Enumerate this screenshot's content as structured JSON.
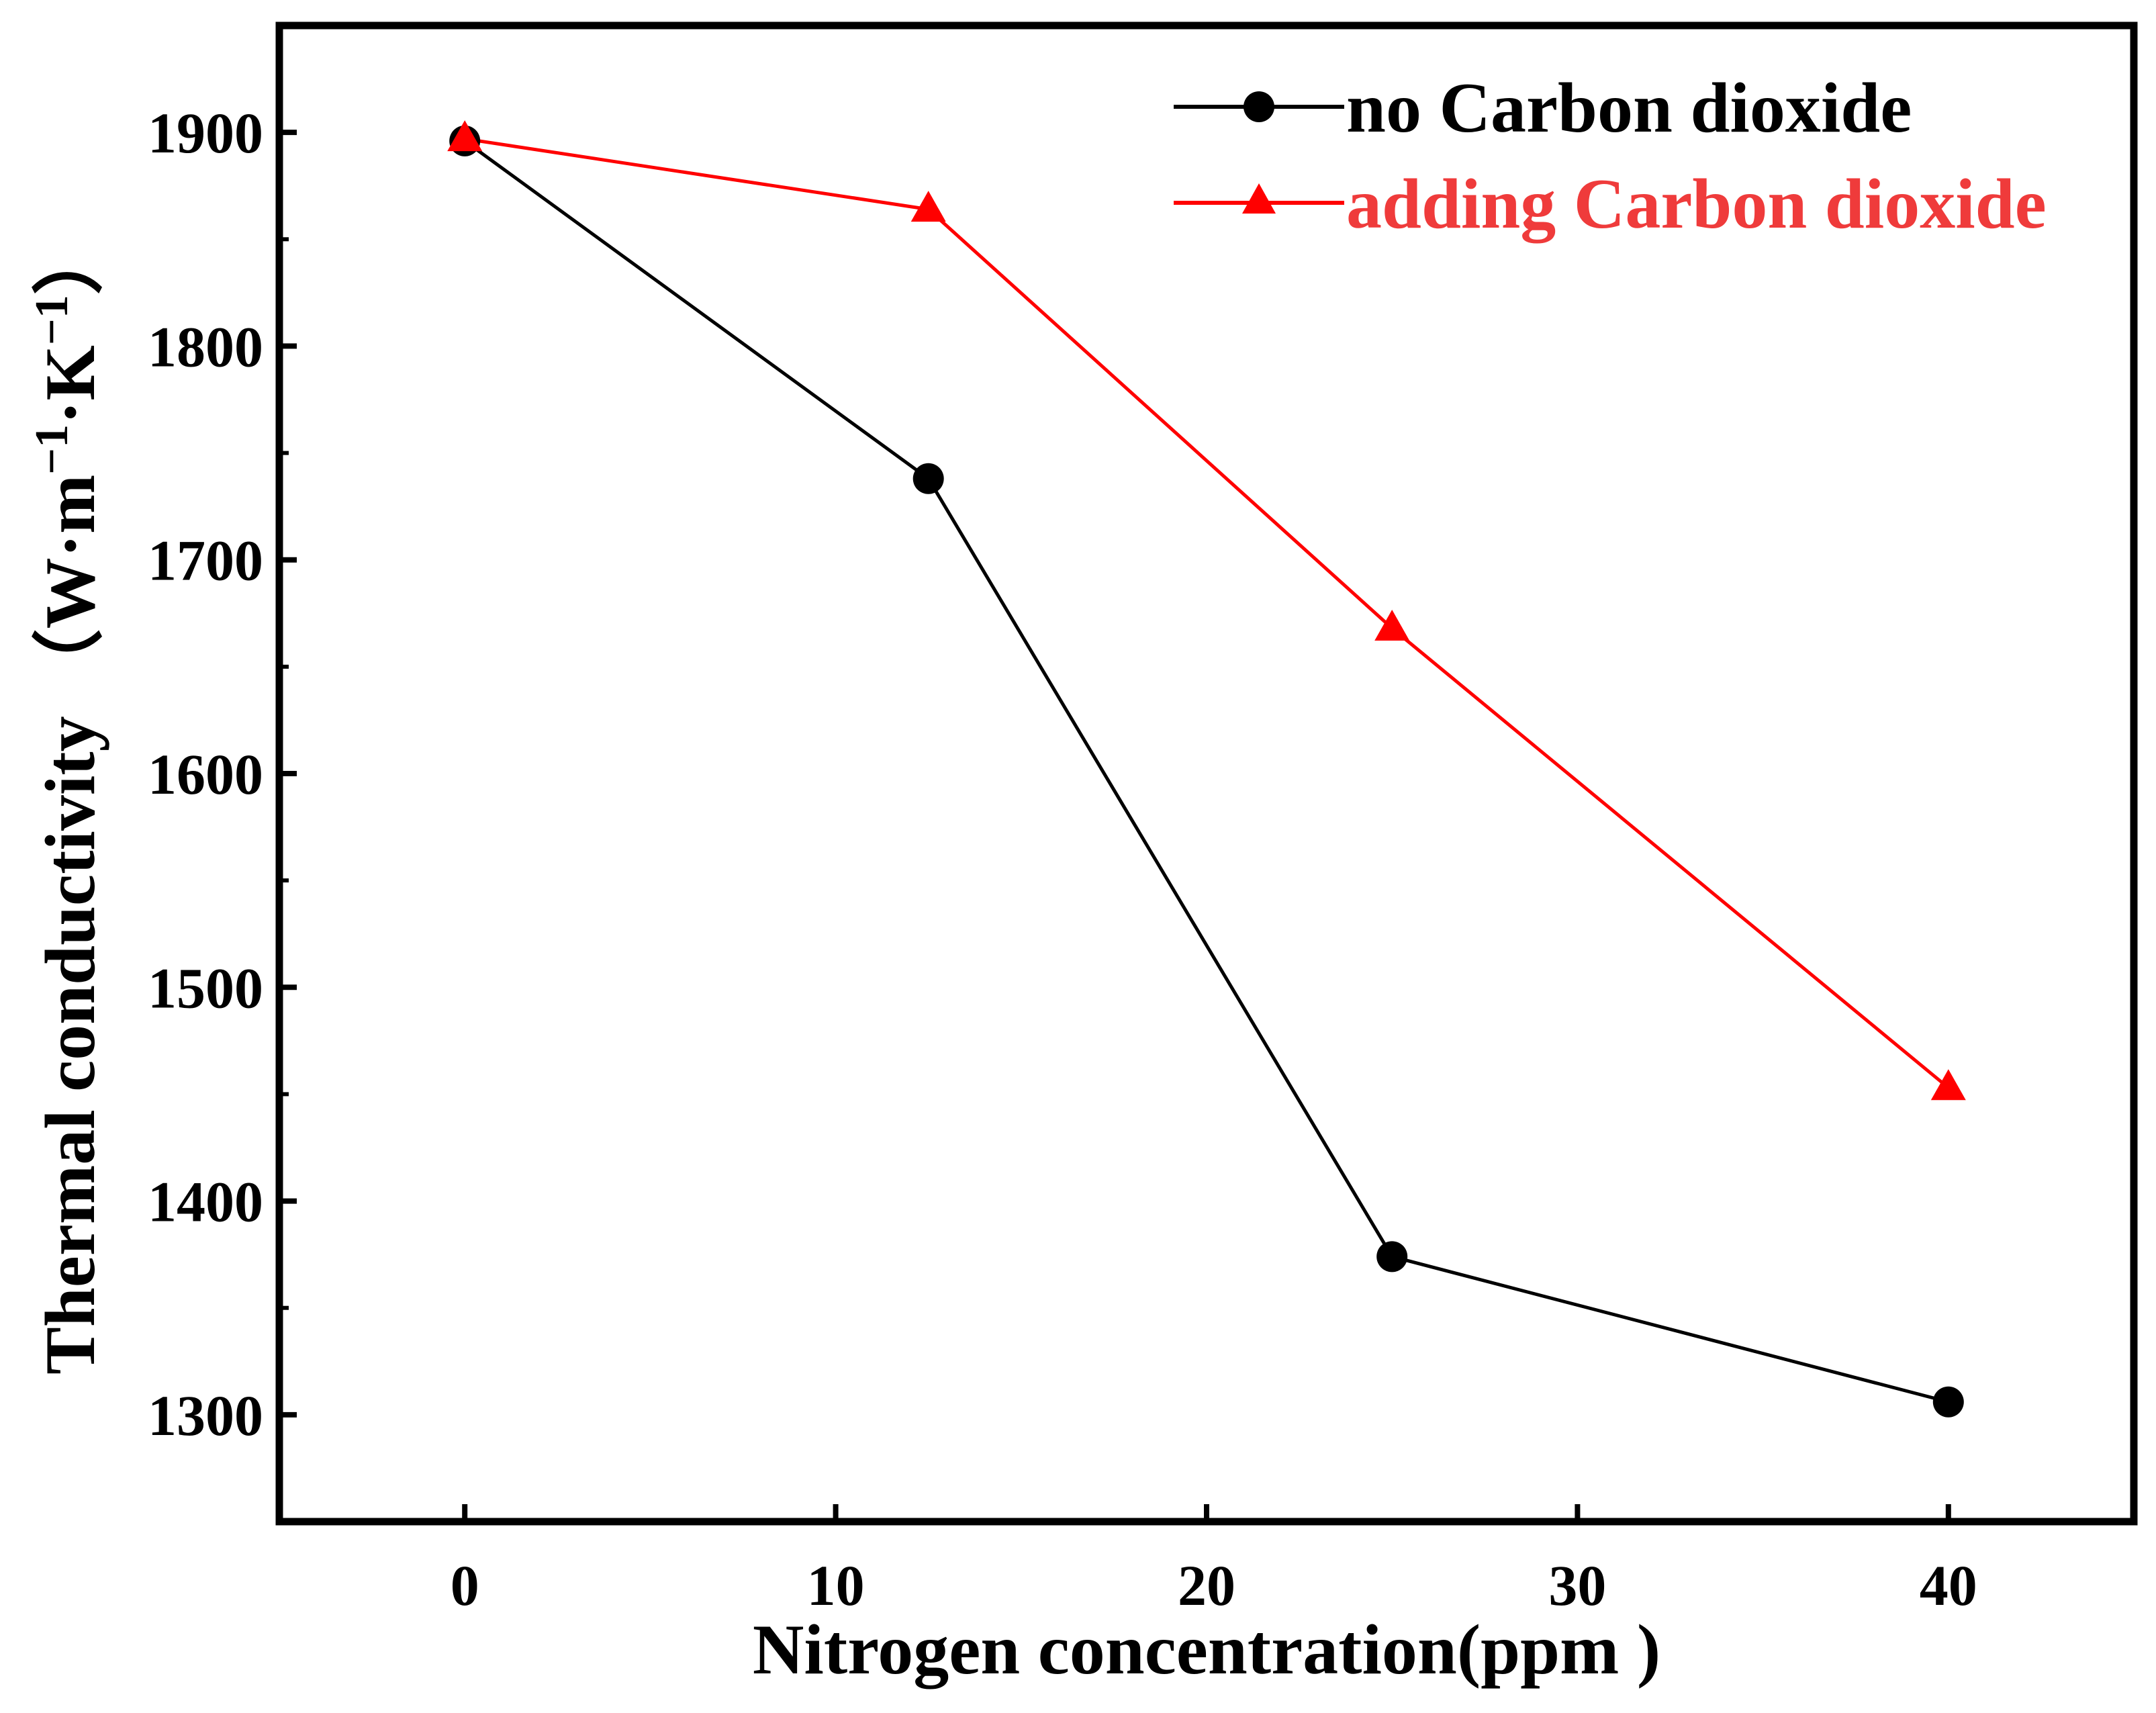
{
  "chart_data": {
    "type": "line",
    "title": "",
    "xlabel": "Nitrogen concentration(ppm )",
    "ylabel": {
      "text": "Thermal conductivity",
      "unit_open": "（",
      "unit_w": "W",
      "unit_dot1": "·",
      "unit_m": "m",
      "unit_sup1": "−1",
      "unit_dot2": "·",
      "unit_k": "K",
      "unit_sup2": "−1",
      "unit_close": "）"
    },
    "xlim": [
      -5,
      45
    ],
    "ylim": [
      1250,
      1950
    ],
    "x_major_ticks": [
      0,
      10,
      20,
      30,
      40
    ],
    "x_tick_labels": [
      "0",
      "10",
      "20",
      "30",
      "40"
    ],
    "y_major_ticks": [
      1300,
      1400,
      1500,
      1600,
      1700,
      1800,
      1900
    ],
    "y_tick_labels": [
      "1300",
      "1400",
      "1500",
      "1600",
      "1700",
      "1800",
      "1900"
    ],
    "y_minor_ticks": [
      1350,
      1450,
      1550,
      1650,
      1750,
      1850
    ],
    "grid": false,
    "legend_position": "top-right",
    "series": [
      {
        "name": "no Carbon dioxide",
        "color": "#000000",
        "marker": "circle",
        "x": [
          0,
          12.5,
          25,
          40
        ],
        "y": [
          1896,
          1738,
          1374,
          1306
        ]
      },
      {
        "name": "adding Carbon dioxide",
        "color": "#ff0000",
        "legend_text_color": "#ef3b3b",
        "marker": "triangle",
        "x": [
          0,
          12.5,
          25,
          40
        ],
        "y": [
          1897,
          1864,
          1668,
          1453
        ]
      }
    ]
  }
}
